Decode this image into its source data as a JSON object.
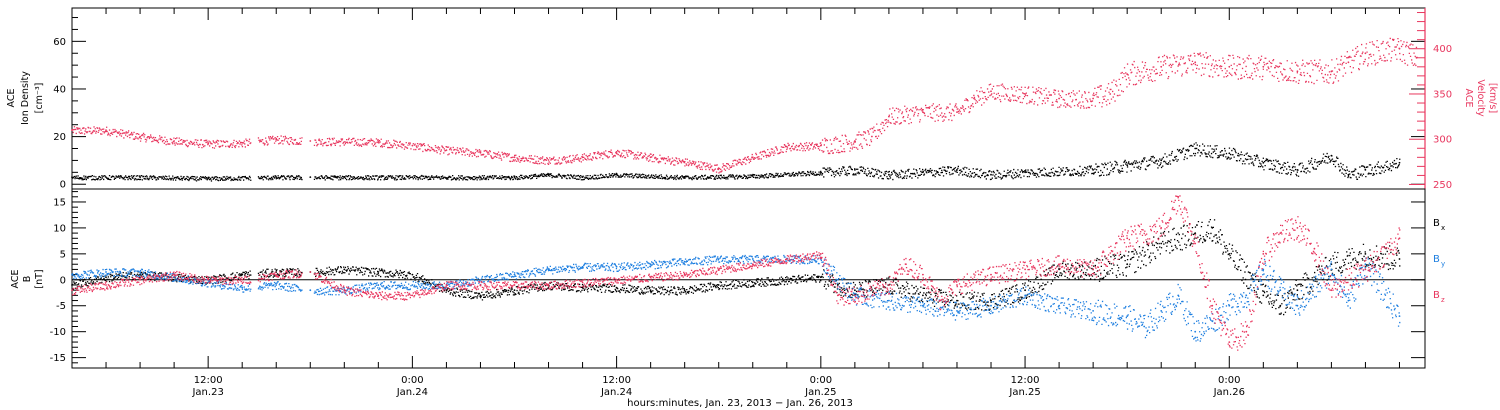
{
  "colors": {
    "bx": "#000000",
    "by": "#1e7fe0",
    "bz": "#e8365e",
    "density": "#000000",
    "velocity": "#e8365e",
    "axis": "#000000"
  },
  "chart_data": [
    {
      "type": "scatter",
      "panel": "top",
      "ylabel_left": [
        "ACE",
        "Ion Density",
        "[cm⁻³]"
      ],
      "ylabel_right": [
        "ACE",
        "Velocity",
        "[km/s]"
      ],
      "ylim_left": [
        -2,
        74
      ],
      "ylim_right": [
        245,
        445
      ],
      "yticks_left": [
        "0",
        "20",
        "40",
        "60"
      ],
      "yticks_right": [
        "250",
        "300",
        "350",
        "400"
      ],
      "x_unit": "hours since 2013-01-23 00:00",
      "xlim": [
        4,
        83.5
      ],
      "series": [
        {
          "key": "density",
          "points": [
            [
              4,
              3
            ],
            [
              8,
              3
            ],
            [
              12,
              2.5
            ],
            [
              16,
              3
            ],
            [
              18,
              3
            ],
            [
              20,
              3
            ],
            [
              24,
              3
            ],
            [
              28,
              3
            ],
            [
              30,
              3
            ],
            [
              32,
              4
            ],
            [
              34,
              3
            ],
            [
              36,
              4
            ],
            [
              40,
              3
            ],
            [
              44,
              3.5
            ],
            [
              48,
              5
            ],
            [
              50,
              6
            ],
            [
              52,
              4
            ],
            [
              54,
              5
            ],
            [
              56,
              6
            ],
            [
              58,
              4
            ],
            [
              60,
              5
            ],
            [
              64,
              6
            ],
            [
              66,
              8
            ],
            [
              68,
              10
            ],
            [
              70,
              15
            ],
            [
              72,
              13
            ],
            [
              74,
              9
            ],
            [
              76,
              6
            ],
            [
              78,
              12
            ],
            [
              79,
              4
            ],
            [
              80,
              6
            ],
            [
              82,
              9
            ]
          ]
        },
        {
          "key": "velocity",
          "points": [
            [
              4,
              310
            ],
            [
              6,
              310
            ],
            [
              8,
              303
            ],
            [
              10,
              298
            ],
            [
              12,
              295
            ],
            [
              14,
              296
            ],
            [
              16,
              300
            ],
            [
              18,
              298
            ],
            [
              22,
              297
            ],
            [
              24,
              293
            ],
            [
              26,
              288
            ],
            [
              28,
              285
            ],
            [
              30,
              280
            ],
            [
              32,
              277
            ],
            [
              34,
              280
            ],
            [
              36,
              286
            ],
            [
              38,
              280
            ],
            [
              40,
              275
            ],
            [
              42,
              268
            ],
            [
              44,
              280
            ],
            [
              46,
              292
            ],
            [
              48,
              293
            ],
            [
              50,
              298
            ],
            [
              51,
              303
            ],
            [
              52,
              325
            ],
            [
              54,
              330
            ],
            [
              56,
              330
            ],
            [
              57,
              345
            ],
            [
              58,
              353
            ],
            [
              60,
              350
            ],
            [
              62,
              345
            ],
            [
              64,
              345
            ],
            [
              65,
              350
            ],
            [
              66,
              372
            ],
            [
              68,
              380
            ],
            [
              70,
              385
            ],
            [
              72,
              380
            ],
            [
              74,
              380
            ],
            [
              76,
              375
            ],
            [
              78,
              375
            ],
            [
              79,
              385
            ],
            [
              80,
              395
            ],
            [
              82,
              400
            ],
            [
              83,
              390
            ]
          ]
        }
      ]
    },
    {
      "type": "scatter",
      "panel": "bottom",
      "ylabel_left": [
        "ACE",
        "B",
        "[nT]"
      ],
      "ylim": [
        -17,
        17.5
      ],
      "yticks": [
        "-15",
        "-10",
        "-5",
        "0",
        "5",
        "10",
        "15"
      ],
      "xlim": [
        4,
        83.5
      ],
      "xticks": [
        {
          "time": "12:00",
          "date": "Jan.23",
          "x": 12
        },
        {
          "time": "0:00",
          "date": "Jan.24",
          "x": 24
        },
        {
          "time": "12:00",
          "date": "Jan.24",
          "x": 36
        },
        {
          "time": "0:00",
          "date": "Jan.25",
          "x": 48
        },
        {
          "time": "12:00",
          "date": "Jan.25",
          "x": 60
        },
        {
          "time": "0:00",
          "date": "Jan.26",
          "x": 72
        }
      ],
      "xlabel": "hours:minutes, Jan. 23, 2013 − Jan. 26, 2013",
      "legend": [
        {
          "key": "bx",
          "label": "B",
          "sub": "x"
        },
        {
          "key": "by",
          "label": "B",
          "sub": "y"
        },
        {
          "key": "bz",
          "label": "B",
          "sub": "z"
        }
      ],
      "series": [
        {
          "key": "bx",
          "points": [
            [
              4,
              -1
            ],
            [
              6,
              0.5
            ],
            [
              8,
              1
            ],
            [
              10,
              0.5
            ],
            [
              12,
              0
            ],
            [
              14,
              1
            ],
            [
              16,
              1.5
            ],
            [
              18,
              1.5
            ],
            [
              20,
              2
            ],
            [
              22,
              1.5
            ],
            [
              24,
              1
            ],
            [
              26,
              -2
            ],
            [
              28,
              -3
            ],
            [
              30,
              -2
            ],
            [
              32,
              -1
            ],
            [
              34,
              -1.5
            ],
            [
              36,
              -1.5
            ],
            [
              38,
              -2
            ],
            [
              40,
              -2
            ],
            [
              42,
              -1
            ],
            [
              44,
              -0.5
            ],
            [
              46,
              0
            ],
            [
              48,
              0.5
            ],
            [
              49,
              -1
            ],
            [
              50,
              -2
            ],
            [
              52,
              -1
            ],
            [
              54,
              -3
            ],
            [
              56,
              -4
            ],
            [
              58,
              -4
            ],
            [
              60,
              -2
            ],
            [
              62,
              2
            ],
            [
              64,
              2
            ],
            [
              66,
              3
            ],
            [
              68,
              7
            ],
            [
              70,
              9
            ],
            [
              71,
              10
            ],
            [
              72,
              5
            ],
            [
              74,
              -3
            ],
            [
              75,
              -5
            ],
            [
              76,
              -2
            ],
            [
              78,
              3
            ],
            [
              80,
              5
            ],
            [
              82,
              4
            ]
          ]
        },
        {
          "key": "by",
          "points": [
            [
              4,
              1
            ],
            [
              6,
              1.5
            ],
            [
              8,
              1.5
            ],
            [
              10,
              0.5
            ],
            [
              12,
              -0.5
            ],
            [
              14,
              -1.5
            ],
            [
              16,
              -1
            ],
            [
              18,
              -2
            ],
            [
              20,
              -2
            ],
            [
              22,
              -1
            ],
            [
              24,
              -1
            ],
            [
              26,
              -1
            ],
            [
              28,
              0
            ],
            [
              30,
              1
            ],
            [
              32,
              2
            ],
            [
              34,
              2.5
            ],
            [
              36,
              2.5
            ],
            [
              38,
              3
            ],
            [
              40,
              3.5
            ],
            [
              42,
              4
            ],
            [
              44,
              4
            ],
            [
              46,
              4
            ],
            [
              48,
              4
            ],
            [
              49,
              0
            ],
            [
              50,
              -3
            ],
            [
              52,
              -4
            ],
            [
              54,
              -5
            ],
            [
              56,
              -6
            ],
            [
              58,
              -5
            ],
            [
              60,
              -3
            ],
            [
              62,
              -5
            ],
            [
              64,
              -6
            ],
            [
              66,
              -7
            ],
            [
              67,
              -9
            ],
            [
              68,
              -6
            ],
            [
              69,
              -3
            ],
            [
              70,
              -10
            ],
            [
              71,
              -8
            ],
            [
              72,
              -5
            ],
            [
              73,
              -3
            ],
            [
              74,
              2
            ],
            [
              75,
              -2
            ],
            [
              76,
              -5
            ],
            [
              78,
              2
            ],
            [
              79,
              -4
            ],
            [
              80,
              3
            ],
            [
              82,
              -7
            ]
          ]
        },
        {
          "key": "bz",
          "points": [
            [
              4,
              -2
            ],
            [
              6,
              -1
            ],
            [
              8,
              0
            ],
            [
              10,
              1
            ],
            [
              12,
              0
            ],
            [
              14,
              0
            ],
            [
              16,
              1
            ],
            [
              18,
              1.5
            ],
            [
              20,
              -2
            ],
            [
              22,
              -3
            ],
            [
              24,
              -3
            ],
            [
              26,
              -1
            ],
            [
              28,
              -1
            ],
            [
              30,
              -1
            ],
            [
              32,
              -1
            ],
            [
              34,
              -0.5
            ],
            [
              36,
              0
            ],
            [
              38,
              0.5
            ],
            [
              40,
              1
            ],
            [
              42,
              2
            ],
            [
              44,
              3
            ],
            [
              46,
              4
            ],
            [
              48,
              5
            ],
            [
              49,
              -3
            ],
            [
              50,
              -3
            ],
            [
              52,
              -1
            ],
            [
              53,
              3
            ],
            [
              54,
              1
            ],
            [
              55,
              -4
            ],
            [
              56,
              -1
            ],
            [
              58,
              1
            ],
            [
              60,
              2
            ],
            [
              62,
              3
            ],
            [
              64,
              2
            ],
            [
              66,
              8
            ],
            [
              68,
              10
            ],
            [
              69,
              16
            ],
            [
              70,
              7
            ],
            [
              71,
              -5
            ],
            [
              72,
              -12
            ],
            [
              73,
              -10
            ],
            [
              74,
              5
            ],
            [
              75,
              9
            ],
            [
              76,
              10
            ],
            [
              77,
              6
            ],
            [
              78,
              -2
            ],
            [
              80,
              2
            ],
            [
              82,
              8
            ]
          ]
        }
      ]
    }
  ]
}
